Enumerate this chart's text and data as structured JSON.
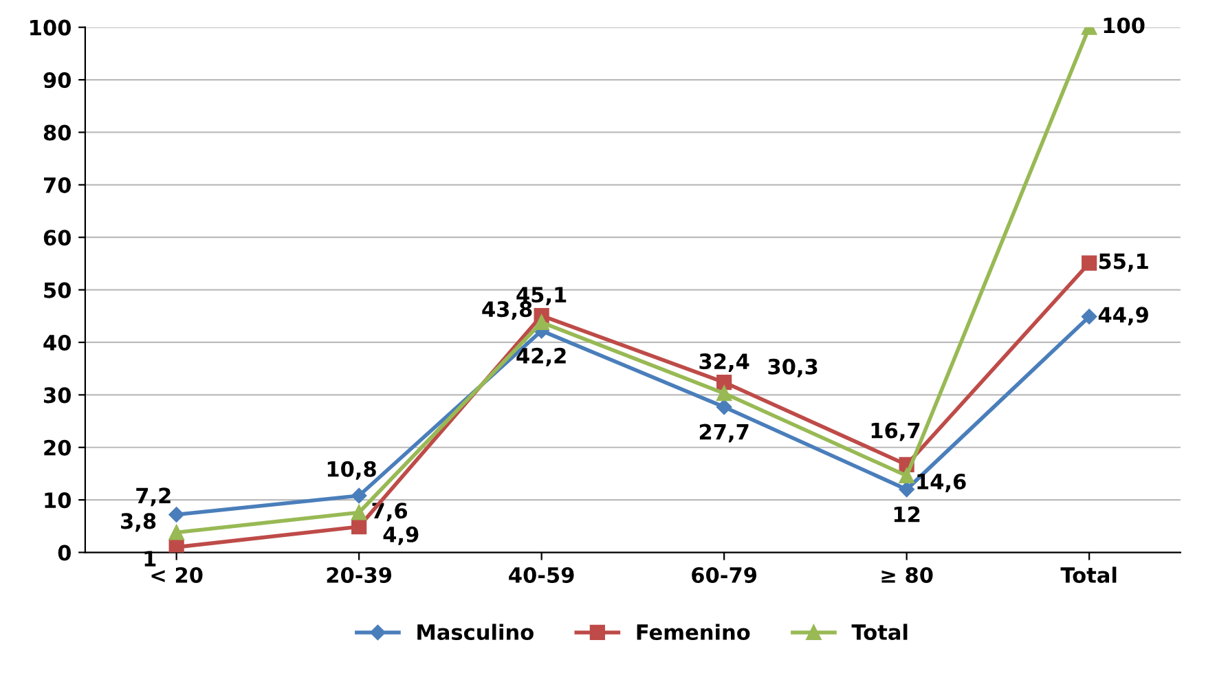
{
  "chart_data": {
    "type": "line",
    "categories": [
      "< 20",
      "20-39",
      "40-59",
      "60-79",
      "≥ 80",
      "Total"
    ],
    "ylim": [
      0,
      100
    ],
    "yticks": [
      0,
      10,
      20,
      30,
      40,
      50,
      60,
      70,
      80,
      90,
      100
    ],
    "grid": "y",
    "legend": "bottom",
    "series": [
      {
        "name": "Masculino",
        "color": "#4a7ebb",
        "marker": "diamond",
        "values": [
          7.2,
          10.8,
          42.2,
          27.7,
          12,
          44.9
        ],
        "value_labels": [
          "7,2",
          "10,8",
          "42,2",
          "27,7",
          "12",
          "44,9"
        ]
      },
      {
        "name": "Femenino",
        "color": "#be4b48",
        "marker": "square",
        "values": [
          1,
          4.9,
          45.1,
          32.4,
          16.7,
          55.1
        ],
        "value_labels": [
          "1",
          "4,9",
          "45,1",
          "32,4",
          "16,7",
          "55,1"
        ]
      },
      {
        "name": "Total",
        "color": "#98b954",
        "marker": "triangle",
        "values": [
          3.8,
          7.6,
          43.8,
          30.3,
          14.6,
          100
        ],
        "value_labels": [
          "3,8",
          "7,6",
          "43,8",
          "30,3",
          "14,6",
          "100"
        ]
      }
    ]
  }
}
